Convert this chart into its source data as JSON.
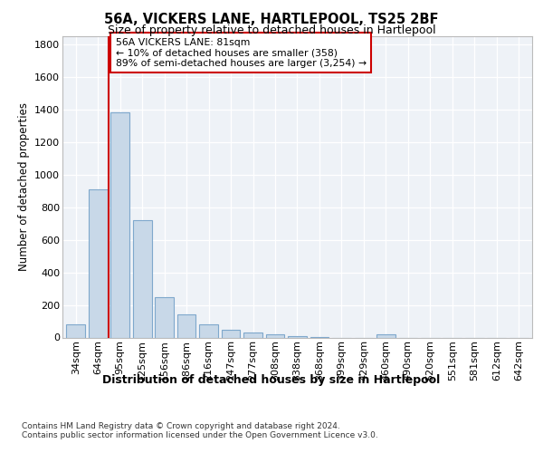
{
  "title1": "56A, VICKERS LANE, HARTLEPOOL, TS25 2BF",
  "title2": "Size of property relative to detached houses in Hartlepool",
  "xlabel": "Distribution of detached houses by size in Hartlepool",
  "ylabel": "Number of detached properties",
  "categories": [
    "34sqm",
    "64sqm",
    "95sqm",
    "125sqm",
    "156sqm",
    "186sqm",
    "216sqm",
    "247sqm",
    "277sqm",
    "308sqm",
    "338sqm",
    "368sqm",
    "399sqm",
    "429sqm",
    "460sqm",
    "490sqm",
    "520sqm",
    "551sqm",
    "581sqm",
    "612sqm",
    "642sqm"
  ],
  "values": [
    80,
    910,
    1380,
    720,
    245,
    140,
    80,
    45,
    30,
    20,
    10,
    5,
    0,
    0,
    20,
    0,
    0,
    0,
    0,
    0,
    0
  ],
  "bar_color": "#c8d8e8",
  "bar_edge_color": "#7fa8cc",
  "vline_x": 1.5,
  "annotation_line1": "56A VICKERS LANE: 81sqm",
  "annotation_line2": "← 10% of detached houses are smaller (358)",
  "annotation_line3": "89% of semi-detached houses are larger (3,254) →",
  "annotation_box_color": "#ffffff",
  "annotation_box_edge": "#cc0000",
  "vline_color": "#cc0000",
  "ylim": [
    0,
    1850
  ],
  "yticks": [
    0,
    200,
    400,
    600,
    800,
    1000,
    1200,
    1400,
    1600,
    1800
  ],
  "footer1": "Contains HM Land Registry data © Crown copyright and database right 2024.",
  "footer2": "Contains public sector information licensed under the Open Government Licence v3.0.",
  "plot_bg_color": "#eef2f7"
}
